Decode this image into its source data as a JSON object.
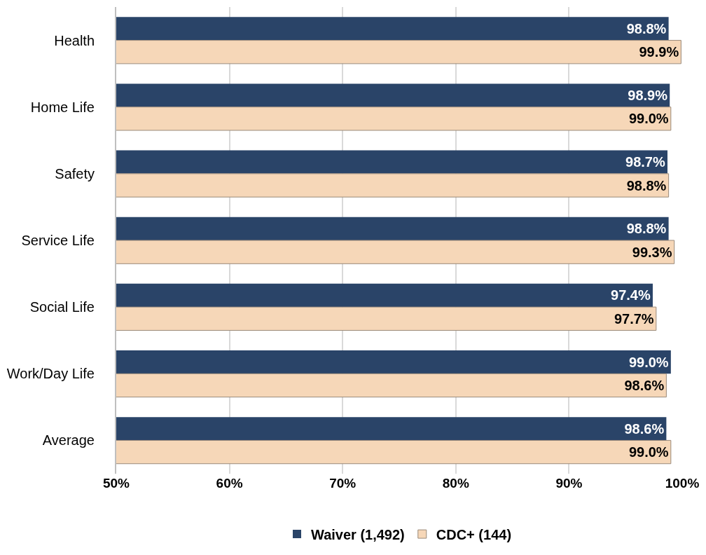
{
  "chart_data": {
    "type": "bar",
    "orientation": "horizontal",
    "categories": [
      "Health",
      "Home Life",
      "Safety",
      "Service Life",
      "Social Life",
      "Work/Day Life",
      "Average"
    ],
    "series": [
      {
        "name": "Waiver (1,492)",
        "color": "#2a4468",
        "values": [
          98.8,
          98.9,
          98.7,
          98.8,
          97.4,
          99.0,
          98.6
        ],
        "value_labels": [
          "98.8%",
          "98.9%",
          "98.7%",
          "98.8%",
          "97.4%",
          "99.0%",
          "98.6%"
        ]
      },
      {
        "name": "CDC+ (144)",
        "color": "#f6d7b8",
        "values": [
          99.9,
          99.0,
          98.8,
          99.3,
          97.7,
          98.6,
          99.0
        ],
        "value_labels": [
          "99.9%",
          "99.0%",
          "98.8%",
          "99.3%",
          "97.7%",
          "98.6%",
          "99.0%"
        ]
      }
    ],
    "xlim": [
      50,
      100
    ],
    "xticks": [
      {
        "value": 50,
        "label": "50%"
      },
      {
        "value": 60,
        "label": "60%"
      },
      {
        "value": 70,
        "label": "70%"
      },
      {
        "value": 80,
        "label": "80%"
      },
      {
        "value": 90,
        "label": "90%"
      },
      {
        "value": 100,
        "label": "100%"
      }
    ],
    "grid": "x",
    "legend": "bottom"
  }
}
